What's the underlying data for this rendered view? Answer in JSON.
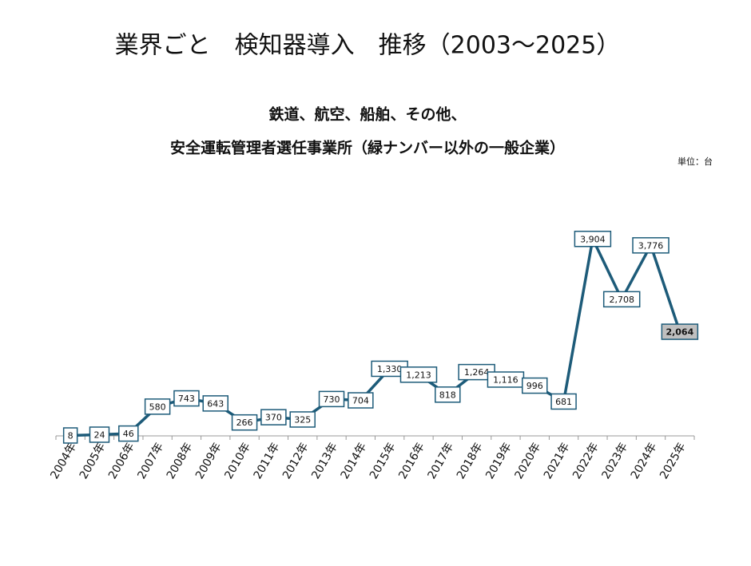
{
  "chart_data": {
    "type": "line",
    "title": "業界ごと　検知器導入　推移（2003～2025）",
    "subtitle": [
      "鉄道、航空、船舶、その他、",
      "安全運転管理者選任事業所（緑ナンバー以外の一般企業）"
    ],
    "unit": "単位：台",
    "categories": [
      "2004年",
      "2005年",
      "2006年",
      "2007年",
      "2008年",
      "2009年",
      "2010年",
      "2011年",
      "2012年",
      "2013年",
      "2014年",
      "2015年",
      "2016年",
      "2017年",
      "2018年",
      "2019年",
      "2020年",
      "2021年",
      "2022年",
      "2023年",
      "2024年",
      "2025年"
    ],
    "values": [
      8,
      24,
      46,
      580,
      743,
      643,
      266,
      370,
      325,
      730,
      704,
      1330,
      1213,
      818,
      1264,
      1116,
      996,
      681,
      3904,
      2708,
      3776,
      2064
    ],
    "value_labels": [
      "8",
      "24",
      "46",
      "580",
      "743",
      "643",
      "266",
      "370",
      "325",
      "730",
      "704",
      "1,330",
      "1,213",
      "818",
      "1,264",
      "1,116",
      "996",
      "681",
      "3,904",
      "2,708",
      "3,776",
      "2,064"
    ],
    "color": "#1d5b79",
    "ylim": [
      0,
      5000
    ]
  }
}
